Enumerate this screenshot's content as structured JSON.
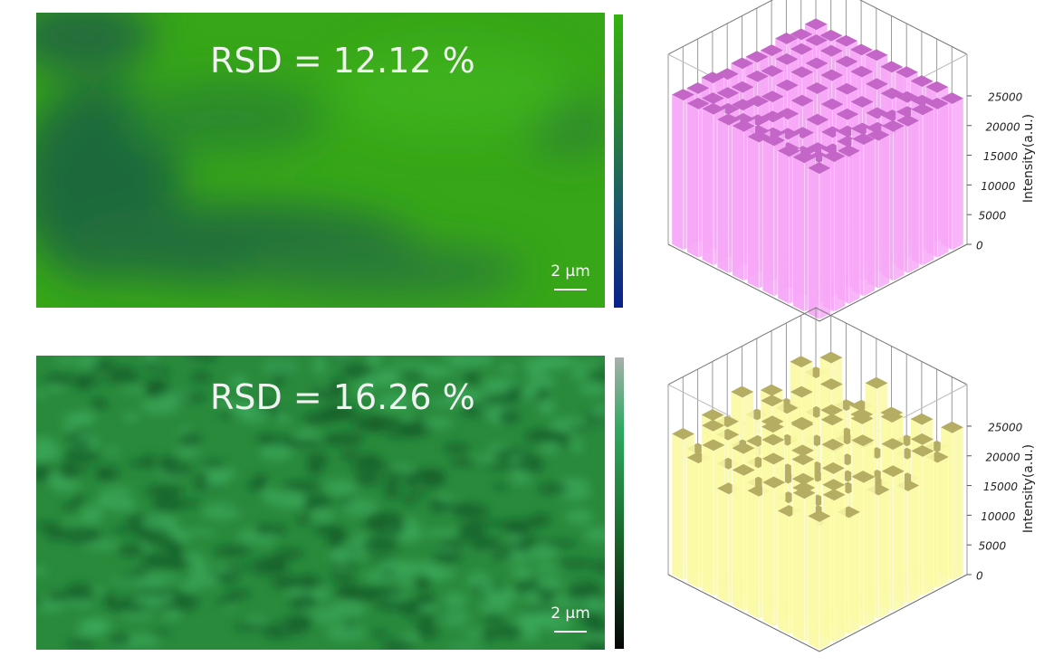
{
  "maps": [
    {
      "rsd_label": "RSD = 12.12 %",
      "scale_bar": "2 μm"
    },
    {
      "rsd_label": "RSD = 16.26 %",
      "scale_bar": "2 μm"
    }
  ],
  "chart_data": [
    {
      "type": "bar3d",
      "zlabel": "Intensity(a.u.)",
      "color": "#f7a8f7",
      "top_color": "#c466c8",
      "zlim": [
        0,
        32000
      ],
      "zticks": [
        0,
        5000,
        10000,
        15000,
        20000,
        25000
      ],
      "values": [
        [
          24500,
          25200,
          24800,
          25500,
          24900,
          25100,
          24700,
          25300,
          25000,
          24600
        ],
        [
          25000,
          23800,
          22500,
          21800,
          22900,
          23400,
          22100,
          23600,
          24200,
          25200
        ],
        [
          24800,
          22600,
          20500,
          19800,
          21200,
          22000,
          20900,
          21700,
          23500,
          24900
        ],
        [
          25300,
          21900,
          19200,
          17800,
          18600,
          20300,
          19500,
          20800,
          22800,
          25100
        ],
        [
          24600,
          22400,
          20100,
          18200,
          17500,
          18900,
          20600,
          21400,
          23100,
          24700
        ],
        [
          25100,
          23000,
          21300,
          19900,
          18800,
          19700,
          21000,
          22300,
          23900,
          25400
        ],
        [
          24900,
          23700,
          22200,
          21500,
          20700,
          21600,
          22400,
          23300,
          24300,
          25000
        ],
        [
          25400,
          24100,
          23500,
          22800,
          22300,
          22900,
          23800,
          24000,
          24800,
          25200
        ],
        [
          25000,
          24600,
          24200,
          23900,
          24400,
          24000,
          24700,
          25100,
          25300,
          24800
        ],
        [
          25200,
          25000,
          25500,
          24800,
          25300,
          25100,
          24900,
          25600,
          25000,
          25400
        ]
      ]
    },
    {
      "type": "bar3d",
      "zlabel": "Intensity(a.u.)",
      "color": "#fbfaa6",
      "top_color": "#b5ad62",
      "zlim": [
        0,
        32000
      ],
      "zticks": [
        0,
        5000,
        10000,
        15000,
        20000,
        25000
      ],
      "values": [
        [
          21500,
          23800,
          19600,
          24200,
          20800,
          22600,
          18900,
          23400,
          21100,
          24800
        ],
        [
          24100,
          18200,
          22900,
          16800,
          21700,
          19300,
          24600,
          17500,
          22800,
          20300
        ],
        [
          19800,
          22400,
          15900,
          23100,
          18500,
          25200,
          16200,
          21900,
          19100,
          23600
        ],
        [
          23300,
          17100,
          21300,
          14600,
          24500,
          17900,
          22200,
          15400,
          24000,
          18700
        ],
        [
          20600,
          24700,
          16900,
          22000,
          13800,
          21500,
          18100,
          23700,
          16600,
          22100
        ],
        [
          22800,
          19400,
          25300,
          17600,
          20900,
          15300,
          23500,
          19000,
          21800,
          25800
        ],
        [
          18400,
          23900,
          20200,
          24900,
          16400,
          22700,
          14200,
          22500,
          17300,
          20700
        ],
        [
          24400,
          20000,
          17700,
          21200,
          23200,
          18800,
          20400,
          16100,
          24300,
          19500
        ],
        [
          21000,
          25100,
          22300,
          19200,
          17000,
          24100,
          21600,
          23000,
          18300,
          26200
        ],
        [
          23700,
          19900,
          24300,
          21900,
          25600,
          20500,
          23300,
          19700,
          25500,
          22400
        ]
      ]
    }
  ]
}
